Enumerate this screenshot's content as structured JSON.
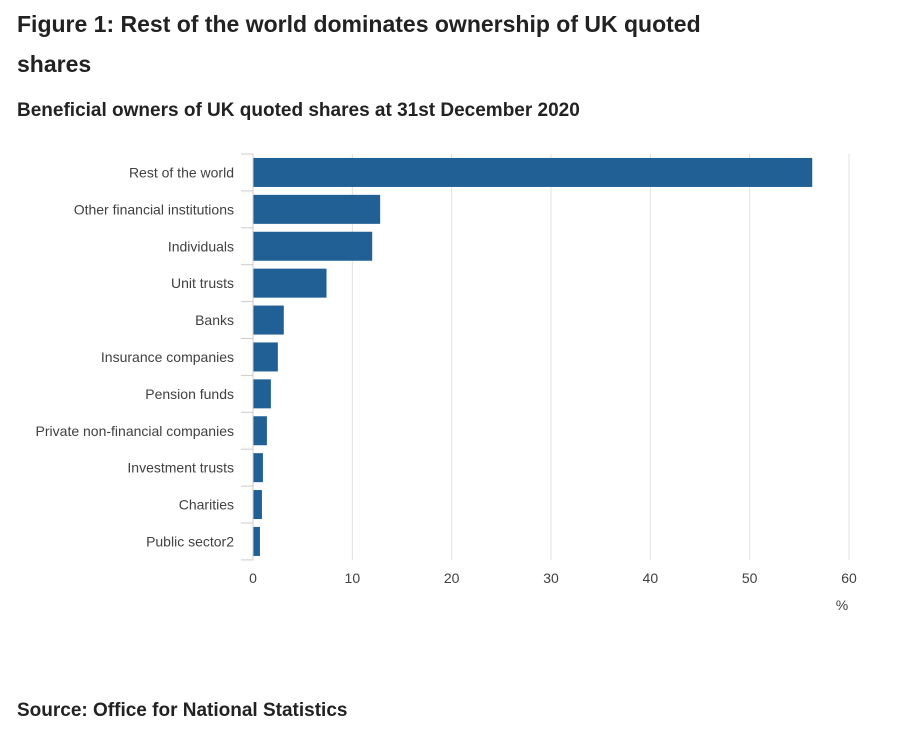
{
  "figure": {
    "title": "Figure 1: Rest of the world dominates ownership of UK quoted shares",
    "subtitle": "Beneficial owners of UK quoted shares at 31st December 2020",
    "source": "Source: Office for National Statistics"
  },
  "chart_data": {
    "type": "bar",
    "orientation": "horizontal",
    "title": "Figure 1: Rest of the world dominates ownership of UK quoted shares",
    "subtitle": "Beneficial owners of UK quoted shares at 31st December 2020",
    "categories": [
      "Rest of the world",
      "Other financial institutions",
      "Individuals",
      "Unit trusts",
      "Banks",
      "Insurance companies",
      "Pension funds",
      "Private non-financial companies",
      "Investment trusts",
      "Charities",
      "Public sector2"
    ],
    "values": [
      56.3,
      12.8,
      12.0,
      7.4,
      3.1,
      2.5,
      1.8,
      1.4,
      1.0,
      0.9,
      0.7
    ],
    "xlabel": "%",
    "ylabel": "",
    "xlim": [
      0,
      60
    ],
    "xticks": [
      0,
      10,
      20,
      30,
      40,
      50,
      60
    ],
    "xtick_labels": [
      "0",
      "10",
      "20",
      "30",
      "40",
      "50",
      "60"
    ],
    "grid": true,
    "legend": "none",
    "bar_color": "#206095",
    "grid_color": "#e0e0e0"
  }
}
